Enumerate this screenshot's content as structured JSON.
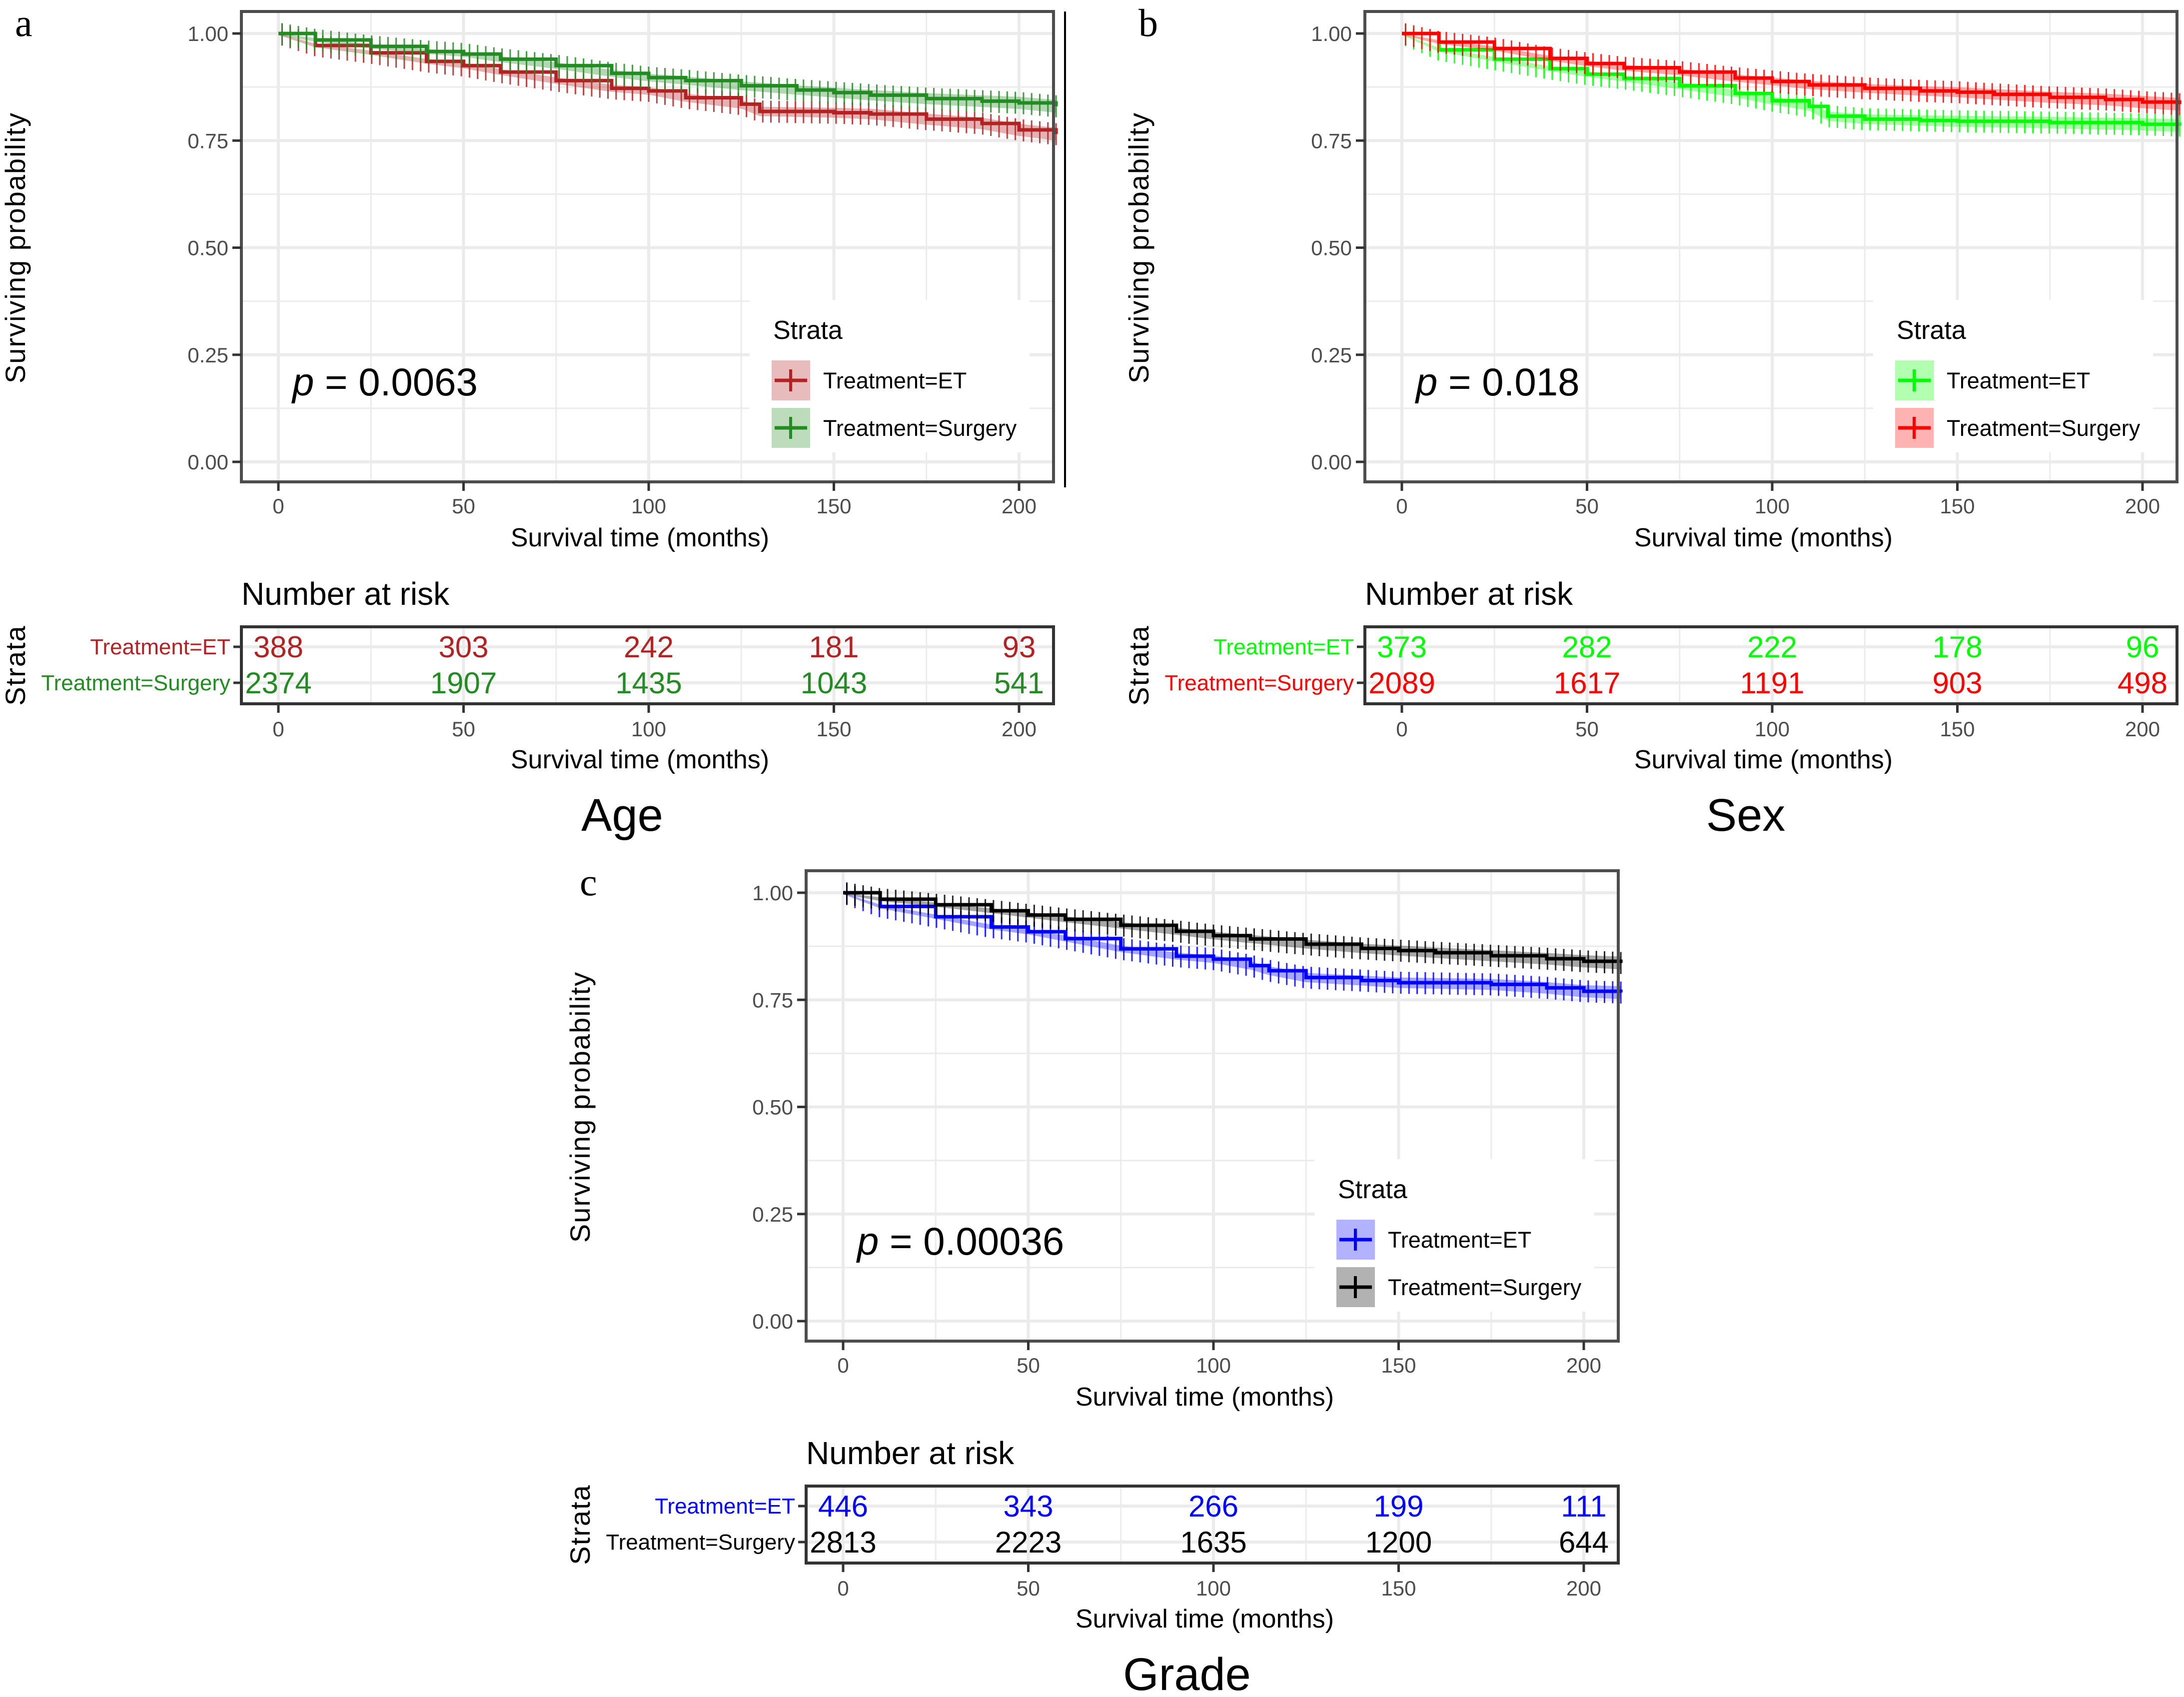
{
  "figure": {
    "panels": [
      {
        "letter": "a",
        "title": "Age",
        "p_value_prefix": "p",
        "p_value_text": " = 0.0063",
        "legend_title": "Strata",
        "risk_title": "Number at risk",
        "risk_strata_label": "Strata"
      },
      {
        "letter": "b",
        "title": "Sex",
        "p_value_prefix": "p",
        "p_value_text": " = 0.018",
        "legend_title": "Strata",
        "risk_title": "Number at risk",
        "risk_strata_label": "Strata"
      },
      {
        "letter": "c",
        "title": "Grade",
        "p_value_prefix": "p",
        "p_value_text": " = 0.00036",
        "legend_title": "Strata",
        "risk_title": "Number at risk",
        "risk_strata_label": "Strata"
      }
    ]
  },
  "chart_data": [
    {
      "type": "line",
      "subtype": "kaplan-meier",
      "panel": "a",
      "title": "Age",
      "xlabel": "Survival time (months)",
      "ylabel": "Surviving probability",
      "xlim": [
        -10,
        209.5
      ],
      "ylim": [
        -0.047,
        1.053
      ],
      "xticks": [
        0,
        50,
        100,
        150,
        200
      ],
      "yticks": [
        "0.00",
        "0.25",
        "0.50",
        "0.75",
        "1.00"
      ],
      "grid": true,
      "legend_title": "Strata",
      "legend_position": "bottom-right",
      "annotation": "p = 0.0063",
      "series": [
        {
          "name": "Treatment=ET",
          "color": "#b22222",
          "band_color": "#b22222",
          "x": [
            0,
            10,
            25,
            40,
            50,
            60,
            75,
            90,
            100,
            110,
            125,
            130,
            150,
            160,
            175,
            190,
            200,
            210
          ],
          "y": [
            1.0,
            0.972,
            0.955,
            0.935,
            0.925,
            0.91,
            0.89,
            0.872,
            0.866,
            0.85,
            0.835,
            0.818,
            0.815,
            0.812,
            0.8,
            0.79,
            0.775,
            0.765
          ]
        },
        {
          "name": "Treatment=Surgery",
          "color": "#228b22",
          "band_color": "#228b22",
          "x": [
            0,
            10,
            25,
            40,
            50,
            60,
            75,
            90,
            100,
            110,
            125,
            140,
            150,
            160,
            175,
            190,
            200,
            210
          ],
          "y": [
            1.0,
            0.985,
            0.97,
            0.958,
            0.952,
            0.94,
            0.925,
            0.907,
            0.897,
            0.89,
            0.878,
            0.868,
            0.862,
            0.856,
            0.848,
            0.842,
            0.838,
            0.83
          ]
        }
      ],
      "risk_table": {
        "title": "Number at risk",
        "times": [
          0,
          50,
          100,
          150,
          200
        ],
        "rows": [
          {
            "label": "Treatment=ET",
            "color": "#b22222",
            "values": [
              "388",
              "303",
              "242",
              "181",
              "93"
            ]
          },
          {
            "label": "Treatment=Surgery",
            "color": "#228b22",
            "values": [
              "2374",
              "1907",
              "1435",
              "1043",
              "541"
            ]
          }
        ]
      }
    },
    {
      "type": "line",
      "subtype": "kaplan-meier",
      "panel": "b",
      "title": "Sex",
      "xlabel": "Survival time (months)",
      "ylabel": "Surviving probability",
      "xlim": [
        -10,
        209.5
      ],
      "ylim": [
        -0.047,
        1.053
      ],
      "xticks": [
        0,
        50,
        100,
        150,
        200
      ],
      "yticks": [
        "0.00",
        "0.25",
        "0.50",
        "0.75",
        "1.00"
      ],
      "grid": true,
      "legend_title": "Strata",
      "legend_position": "bottom-right",
      "annotation": "p = 0.018",
      "series": [
        {
          "name": "Treatment=ET",
          "color": "#00ff00",
          "band_color": "#00ff00",
          "x": [
            0,
            10,
            25,
            40,
            50,
            60,
            75,
            90,
            100,
            110,
            115,
            125,
            140,
            150,
            175,
            200,
            210
          ],
          "y": [
            1.0,
            0.962,
            0.94,
            0.918,
            0.905,
            0.895,
            0.878,
            0.86,
            0.843,
            0.83,
            0.807,
            0.8,
            0.797,
            0.795,
            0.792,
            0.788,
            0.785
          ]
        },
        {
          "name": "Treatment=Surgery",
          "color": "#ff0000",
          "band_color": "#ff0000",
          "x": [
            0,
            10,
            25,
            40,
            50,
            60,
            75,
            90,
            100,
            110,
            125,
            140,
            150,
            160,
            175,
            190,
            200,
            210
          ],
          "y": [
            1.0,
            0.98,
            0.965,
            0.942,
            0.93,
            0.92,
            0.91,
            0.896,
            0.888,
            0.88,
            0.872,
            0.866,
            0.863,
            0.858,
            0.851,
            0.846,
            0.84,
            0.835
          ]
        }
      ],
      "risk_table": {
        "title": "Number at risk",
        "times": [
          0,
          50,
          100,
          150,
          200
        ],
        "rows": [
          {
            "label": "Treatment=ET",
            "color": "#00ff00",
            "values": [
              "373",
              "282",
              "222",
              "178",
              "96"
            ]
          },
          {
            "label": "Treatment=Surgery",
            "color": "#ff0000",
            "values": [
              "2089",
              "1617",
              "1191",
              "903",
              "498"
            ]
          }
        ]
      }
    },
    {
      "type": "line",
      "subtype": "kaplan-meier",
      "panel": "c",
      "title": "Grade",
      "xlabel": "Survival time (months)",
      "ylabel": "Surviving probability",
      "xlim": [
        -10,
        209.5
      ],
      "ylim": [
        -0.047,
        1.053
      ],
      "xticks": [
        0,
        50,
        100,
        150,
        200
      ],
      "yticks": [
        "0.00",
        "0.25",
        "0.50",
        "0.75",
        "1.00"
      ],
      "grid": true,
      "legend_title": "Strata",
      "legend_position": "bottom-right",
      "annotation": "p = 0.00036",
      "series": [
        {
          "name": "Treatment=ET",
          "color": "#0000ff",
          "band_color": "#0000ff",
          "x": [
            0,
            10,
            25,
            40,
            50,
            60,
            75,
            90,
            100,
            110,
            115,
            125,
            140,
            150,
            175,
            190,
            200,
            210
          ],
          "y": [
            1.0,
            0.968,
            0.944,
            0.92,
            0.909,
            0.893,
            0.869,
            0.852,
            0.845,
            0.83,
            0.818,
            0.802,
            0.795,
            0.79,
            0.786,
            0.778,
            0.77,
            0.767
          ]
        },
        {
          "name": "Treatment=Surgery",
          "color": "#000000",
          "band_color": "#000000",
          "x": [
            0,
            10,
            25,
            40,
            50,
            60,
            75,
            90,
            100,
            110,
            125,
            140,
            150,
            160,
            175,
            190,
            200,
            210
          ],
          "y": [
            1.0,
            0.985,
            0.972,
            0.958,
            0.948,
            0.938,
            0.924,
            0.91,
            0.9,
            0.892,
            0.88,
            0.87,
            0.865,
            0.86,
            0.853,
            0.846,
            0.84,
            0.836
          ]
        }
      ],
      "risk_table": {
        "title": "Number at risk",
        "times": [
          0,
          50,
          100,
          150,
          200
        ],
        "rows": [
          {
            "label": "Treatment=ET",
            "color": "#0000ff",
            "values": [
              "446",
              "343",
              "266",
              "199",
              "111"
            ]
          },
          {
            "label": "Treatment=Surgery",
            "color": "#000000",
            "values": [
              "2813",
              "2223",
              "1635",
              "1200",
              "644"
            ]
          }
        ]
      }
    }
  ]
}
